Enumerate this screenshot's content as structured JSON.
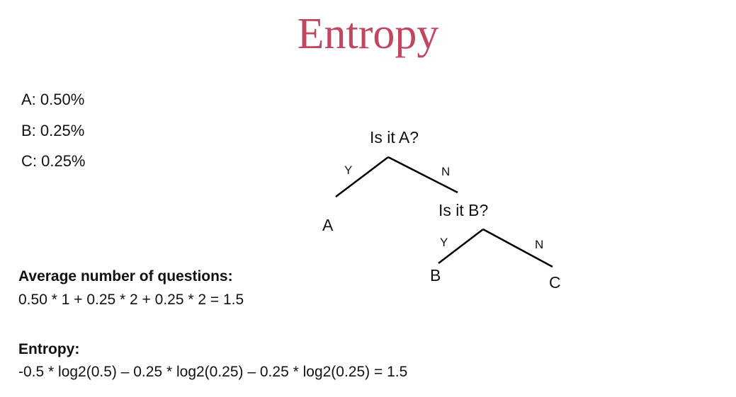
{
  "title": "Entropy",
  "probabilities": [
    {
      "text": "A: 0.50%"
    },
    {
      "text": "B: 0.25%"
    },
    {
      "text": "C: 0.25%"
    }
  ],
  "tree": {
    "root_question": "Is it A?",
    "root_yes_label": "Y",
    "root_no_label": "N",
    "leaf_a": "A",
    "second_question": "Is it B?",
    "second_yes_label": "Y",
    "second_no_label": "N",
    "leaf_b": "B",
    "leaf_c": "C"
  },
  "average": {
    "heading": "Average number of questions:",
    "formula": "0.50 * 1 + 0.25 * 2  + 0.25 * 2 = 1.5"
  },
  "entropy": {
    "heading": "Entropy:",
    "formula": "-0.5 * log2(0.5) – 0.25 * log2(0.25) – 0.25 * log2(0.25) = 1.5"
  },
  "colors": {
    "title": "#c0475f",
    "text": "#111111",
    "lines": "#000000"
  }
}
